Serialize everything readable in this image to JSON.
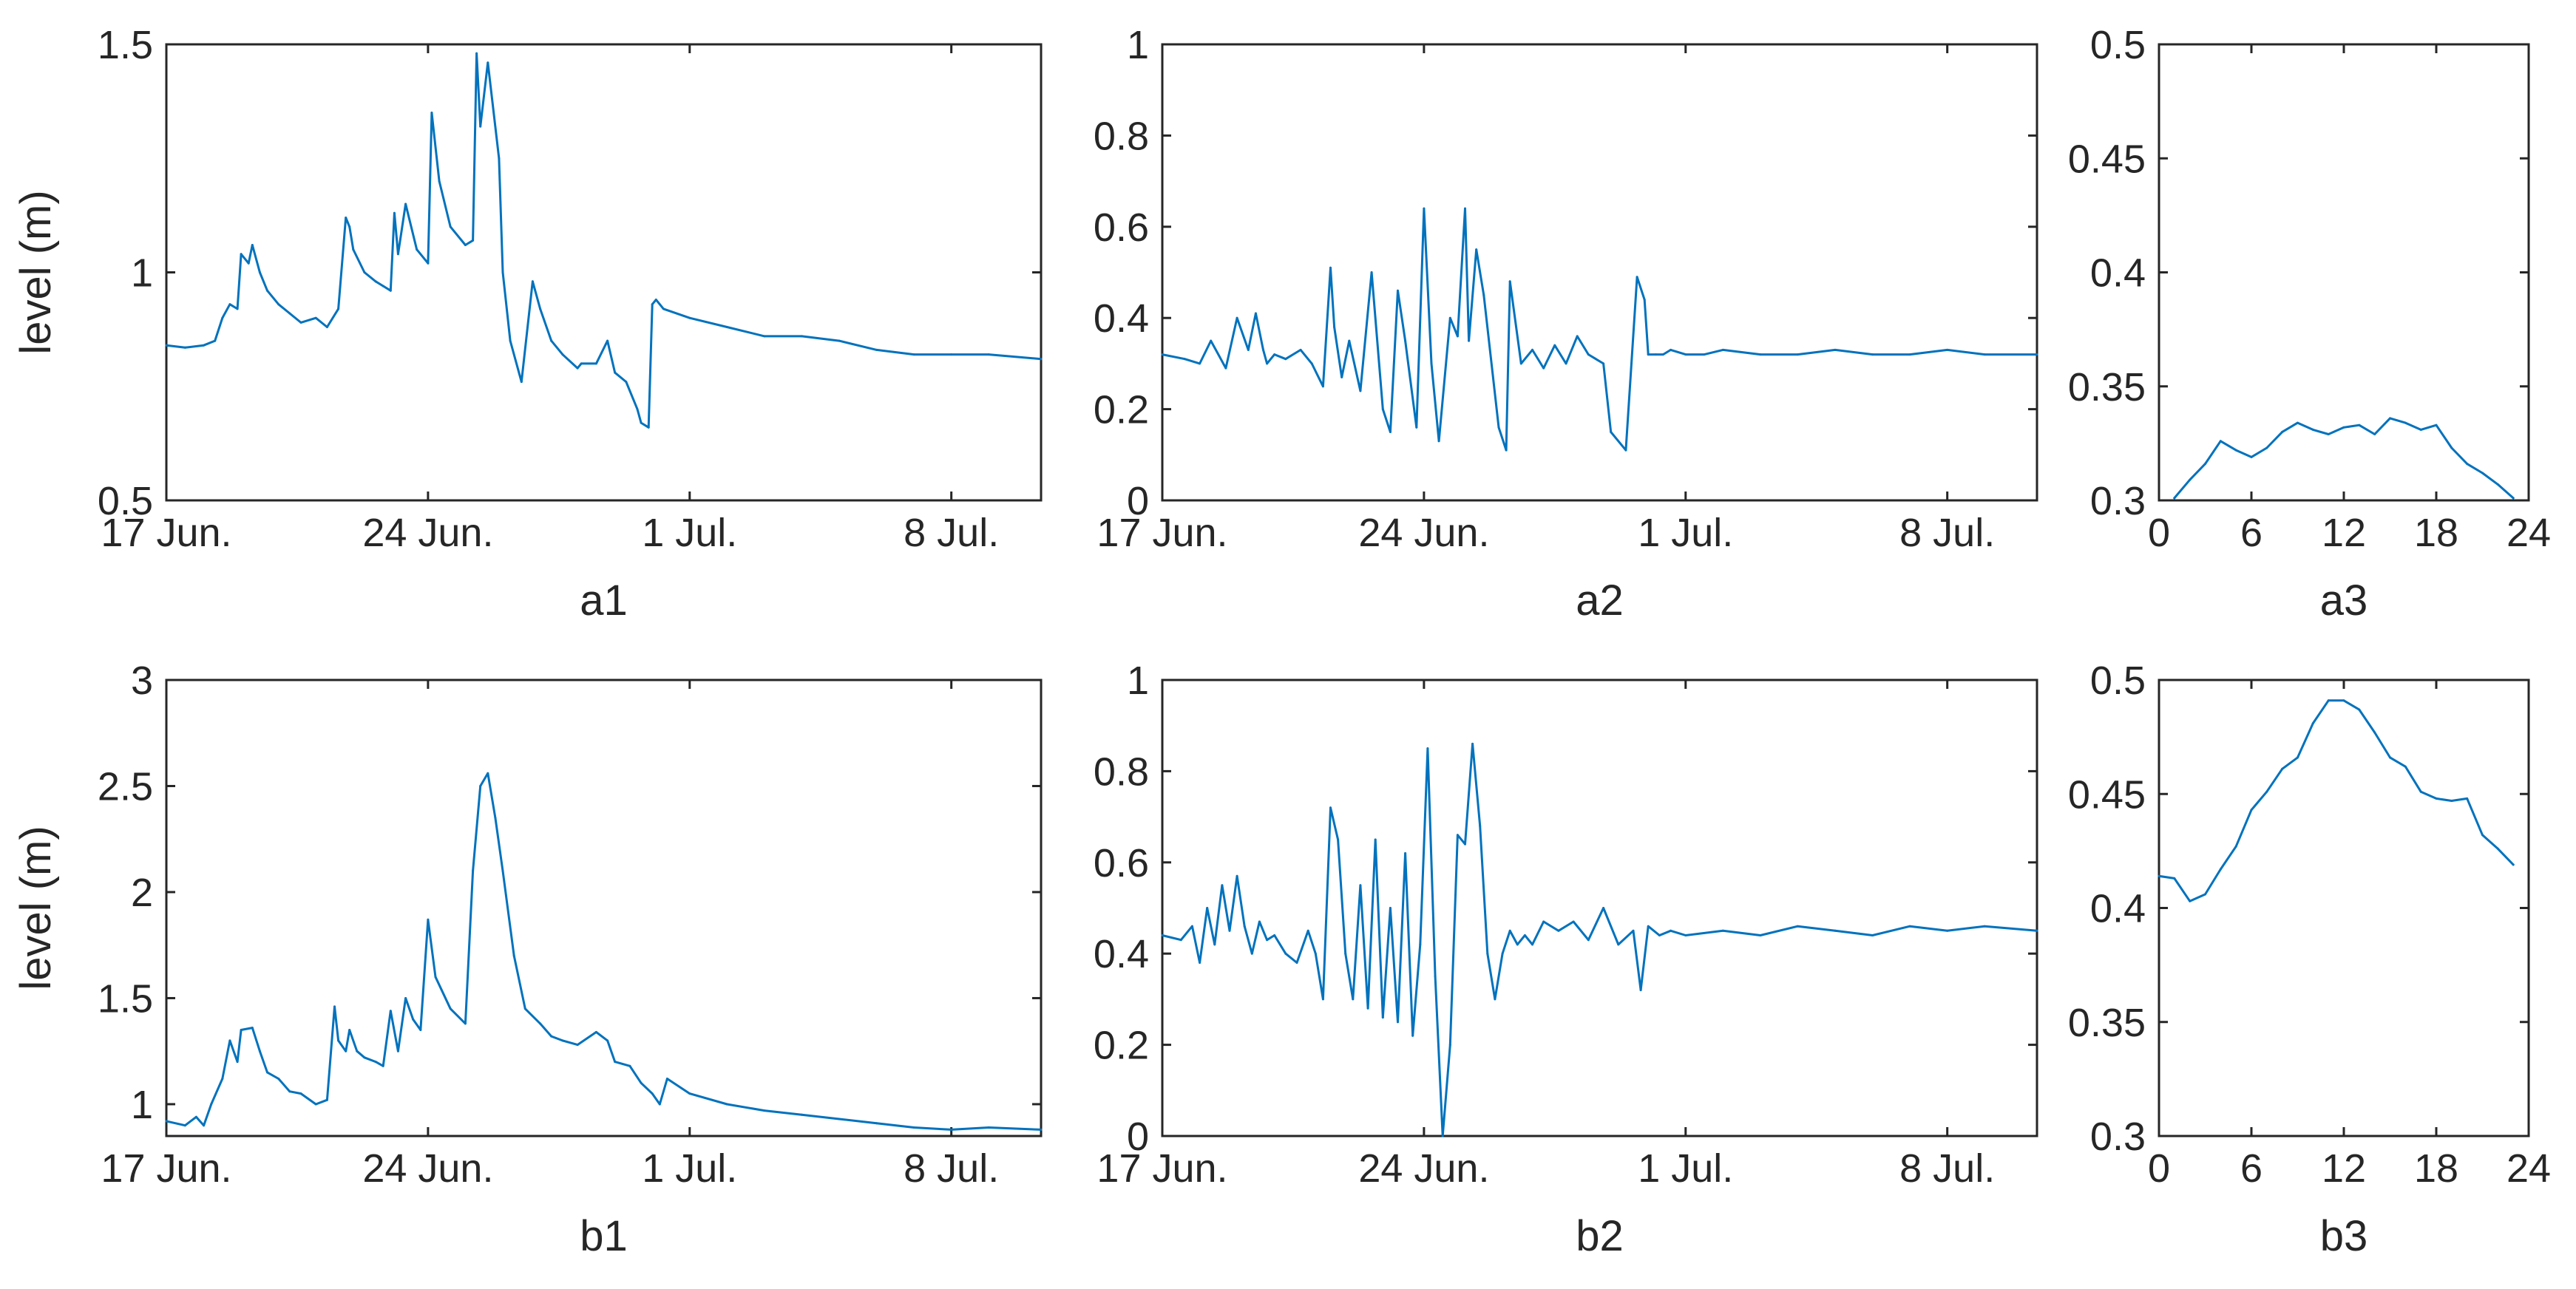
{
  "colors": {
    "series": "#0072BD",
    "axis": "#262626",
    "background": "#ffffff"
  },
  "chart_data": [
    {
      "id": "a1",
      "type": "line",
      "label": "a1",
      "ylabel": "level (m)",
      "xlim": [
        0,
        23.4
      ],
      "ylim": [
        0.5,
        1.5
      ],
      "xticks": [
        {
          "v": 0,
          "t": "17 Jun."
        },
        {
          "v": 7,
          "t": "24 Jun."
        },
        {
          "v": 14,
          "t": "1 Jul."
        },
        {
          "v": 21,
          "t": "8 Jul."
        }
      ],
      "yticks": [
        {
          "v": 0.5,
          "t": "0.5"
        },
        {
          "v": 1,
          "t": "1"
        },
        {
          "v": 1.5,
          "t": "1.5"
        }
      ],
      "x": [
        0,
        0.5,
        1,
        1.3,
        1.5,
        1.7,
        1.9,
        2,
        2.2,
        2.3,
        2.5,
        2.7,
        3,
        3.3,
        3.6,
        4,
        4.3,
        4.6,
        4.8,
        4.9,
        5,
        5.3,
        5.6,
        5.8,
        6,
        6.1,
        6.2,
        6.4,
        6.7,
        7,
        7.1,
        7.3,
        7.6,
        8,
        8.2,
        8.3,
        8.4,
        8.6,
        8.9,
        9,
        9.2,
        9.5,
        9.8,
        10,
        10.3,
        10.6,
        11,
        11.1,
        11.5,
        11.8,
        12,
        12.3,
        12.6,
        12.7,
        12.9,
        13,
        13.1,
        13.3,
        14,
        15,
        16,
        17,
        18,
        19,
        20,
        21,
        22,
        23.4
      ],
      "y": [
        0.84,
        0.835,
        0.84,
        0.85,
        0.9,
        0.93,
        0.92,
        1.04,
        1.02,
        1.06,
        1.0,
        0.96,
        0.93,
        0.91,
        0.89,
        0.9,
        0.88,
        0.92,
        1.12,
        1.1,
        1.05,
        1.0,
        0.98,
        0.97,
        0.96,
        1.13,
        1.04,
        1.15,
        1.05,
        1.02,
        1.35,
        1.2,
        1.1,
        1.06,
        1.07,
        1.48,
        1.32,
        1.46,
        1.25,
        1.0,
        0.85,
        0.76,
        0.98,
        0.92,
        0.85,
        0.82,
        0.79,
        0.8,
        0.8,
        0.85,
        0.78,
        0.76,
        0.7,
        0.67,
        0.66,
        0.93,
        0.94,
        0.92,
        0.9,
        0.88,
        0.86,
        0.86,
        0.85,
        0.83,
        0.82,
        0.82,
        0.82,
        0.81
      ]
    },
    {
      "id": "a2",
      "type": "line",
      "label": "a2",
      "ylabel": "",
      "xlim": [
        0,
        23.4
      ],
      "ylim": [
        0,
        1
      ],
      "xticks": [
        {
          "v": 0,
          "t": "17 Jun."
        },
        {
          "v": 7,
          "t": "24 Jun."
        },
        {
          "v": 14,
          "t": "1 Jul."
        },
        {
          "v": 21,
          "t": "8 Jul."
        }
      ],
      "yticks": [
        {
          "v": 0,
          "t": "0"
        },
        {
          "v": 0.2,
          "t": "0.2"
        },
        {
          "v": 0.4,
          "t": "0.4"
        },
        {
          "v": 0.6,
          "t": "0.6"
        },
        {
          "v": 0.8,
          "t": "0.8"
        },
        {
          "v": 1,
          "t": "1"
        }
      ],
      "x": [
        0,
        0.6,
        1,
        1.3,
        1.7,
        2,
        2.3,
        2.5,
        2.7,
        2.8,
        3,
        3.3,
        3.7,
        4,
        4.3,
        4.5,
        4.6,
        4.8,
        5,
        5.3,
        5.6,
        5.9,
        6.1,
        6.3,
        6.5,
        6.8,
        7,
        7.2,
        7.4,
        7.7,
        7.9,
        8.1,
        8.2,
        8.4,
        8.6,
        9,
        9.2,
        9.3,
        9.6,
        9.9,
        10.2,
        10.5,
        10.8,
        11.1,
        11.4,
        11.8,
        12,
        12.4,
        12.7,
        12.9,
        13,
        13.2,
        13.4,
        13.6,
        14,
        14.5,
        15,
        16,
        17,
        18,
        19,
        20,
        21,
        22,
        23.4
      ],
      "y": [
        0.32,
        0.31,
        0.3,
        0.35,
        0.29,
        0.4,
        0.33,
        0.41,
        0.33,
        0.3,
        0.32,
        0.31,
        0.33,
        0.3,
        0.25,
        0.51,
        0.38,
        0.27,
        0.35,
        0.24,
        0.5,
        0.2,
        0.15,
        0.46,
        0.35,
        0.16,
        0.64,
        0.3,
        0.13,
        0.4,
        0.36,
        0.64,
        0.35,
        0.55,
        0.45,
        0.16,
        0.11,
        0.48,
        0.3,
        0.33,
        0.29,
        0.34,
        0.3,
        0.36,
        0.32,
        0.3,
        0.15,
        0.11,
        0.49,
        0.44,
        0.32,
        0.32,
        0.32,
        0.33,
        0.32,
        0.32,
        0.33,
        0.32,
        0.32,
        0.33,
        0.32,
        0.32,
        0.33,
        0.32,
        0.32
      ]
    },
    {
      "id": "a3",
      "type": "line",
      "label": "a3",
      "ylabel": "",
      "xlim": [
        0,
        24
      ],
      "ylim": [
        0.3,
        0.5
      ],
      "xticks": [
        {
          "v": 0,
          "t": "0"
        },
        {
          "v": 6,
          "t": "6"
        },
        {
          "v": 12,
          "t": "12"
        },
        {
          "v": 18,
          "t": "18"
        },
        {
          "v": 24,
          "t": "24"
        }
      ],
      "yticks": [
        {
          "v": 0.3,
          "t": "0.3"
        },
        {
          "v": 0.35,
          "t": "0.35"
        },
        {
          "v": 0.4,
          "t": "0.4"
        },
        {
          "v": 0.45,
          "t": "0.45"
        },
        {
          "v": 0.5,
          "t": "0.5"
        }
      ],
      "x": [
        1,
        2,
        3,
        4,
        5,
        6,
        7,
        8,
        9,
        10,
        11,
        12,
        13,
        14,
        15,
        16,
        17,
        18,
        19,
        20,
        21,
        22,
        23
      ],
      "y": [
        0.301,
        0.309,
        0.316,
        0.326,
        0.322,
        0.319,
        0.323,
        0.33,
        0.334,
        0.331,
        0.329,
        0.332,
        0.333,
        0.329,
        0.336,
        0.334,
        0.331,
        0.333,
        0.323,
        0.316,
        0.312,
        0.307,
        0.301
      ]
    },
    {
      "id": "b1",
      "type": "line",
      "label": "b1",
      "ylabel": "level (m)",
      "xlim": [
        0,
        23.4
      ],
      "ylim": [
        0.85,
        3
      ],
      "xticks": [
        {
          "v": 0,
          "t": "17 Jun."
        },
        {
          "v": 7,
          "t": "24 Jun."
        },
        {
          "v": 14,
          "t": "1 Jul."
        },
        {
          "v": 21,
          "t": "8 Jul."
        }
      ],
      "yticks": [
        {
          "v": 1,
          "t": "1"
        },
        {
          "v": 1.5,
          "t": "1.5"
        },
        {
          "v": 2,
          "t": "2"
        },
        {
          "v": 2.5,
          "t": "2.5"
        },
        {
          "v": 3,
          "t": "3"
        }
      ],
      "x": [
        0,
        0.5,
        0.8,
        1,
        1.2,
        1.5,
        1.7,
        1.9,
        2,
        2.3,
        2.5,
        2.7,
        3,
        3.3,
        3.6,
        4,
        4.3,
        4.5,
        4.6,
        4.8,
        4.9,
        5.1,
        5.3,
        5.6,
        5.8,
        6,
        6.2,
        6.4,
        6.6,
        6.8,
        7,
        7.2,
        7.6,
        8,
        8.2,
        8.4,
        8.6,
        8.8,
        9,
        9.3,
        9.6,
        10,
        10.3,
        10.6,
        11,
        11.5,
        11.8,
        12,
        12.4,
        12.7,
        13,
        13.2,
        13.4,
        14,
        15,
        16,
        17,
        18,
        19,
        20,
        21,
        22,
        23.4
      ],
      "y": [
        0.92,
        0.9,
        0.94,
        0.9,
        1.0,
        1.12,
        1.3,
        1.2,
        1.35,
        1.36,
        1.25,
        1.15,
        1.12,
        1.06,
        1.05,
        1.0,
        1.02,
        1.46,
        1.3,
        1.25,
        1.35,
        1.25,
        1.22,
        1.2,
        1.18,
        1.44,
        1.25,
        1.5,
        1.4,
        1.35,
        1.87,
        1.6,
        1.45,
        1.38,
        2.1,
        2.5,
        2.56,
        2.35,
        2.1,
        1.7,
        1.45,
        1.38,
        1.32,
        1.3,
        1.28,
        1.34,
        1.3,
        1.2,
        1.18,
        1.1,
        1.05,
        1.0,
        1.12,
        1.05,
        1.0,
        0.97,
        0.95,
        0.93,
        0.91,
        0.89,
        0.88,
        0.89,
        0.88
      ]
    },
    {
      "id": "b2",
      "type": "line",
      "label": "b2",
      "ylabel": "",
      "xlim": [
        0,
        23.4
      ],
      "ylim": [
        0,
        1
      ],
      "xticks": [
        {
          "v": 0,
          "t": "17 Jun."
        },
        {
          "v": 7,
          "t": "24 Jun."
        },
        {
          "v": 14,
          "t": "1 Jul."
        },
        {
          "v": 21,
          "t": "8 Jul."
        }
      ],
      "yticks": [
        {
          "v": 0,
          "t": "0"
        },
        {
          "v": 0.2,
          "t": "0.2"
        },
        {
          "v": 0.4,
          "t": "0.4"
        },
        {
          "v": 0.6,
          "t": "0.6"
        },
        {
          "v": 0.8,
          "t": "0.8"
        },
        {
          "v": 1,
          "t": "1"
        }
      ],
      "x": [
        0,
        0.5,
        0.8,
        1,
        1.2,
        1.4,
        1.6,
        1.8,
        2,
        2.2,
        2.4,
        2.6,
        2.8,
        3,
        3.3,
        3.6,
        3.9,
        4.1,
        4.3,
        4.5,
        4.7,
        4.9,
        5.1,
        5.3,
        5.5,
        5.7,
        5.9,
        6.1,
        6.3,
        6.5,
        6.7,
        6.9,
        7.1,
        7.3,
        7.5,
        7.7,
        7.9,
        8.1,
        8.3,
        8.5,
        8.7,
        8.9,
        9.1,
        9.3,
        9.5,
        9.7,
        9.9,
        10.2,
        10.6,
        11,
        11.4,
        11.8,
        12.2,
        12.6,
        12.8,
        13,
        13.3,
        13.6,
        14,
        15,
        16,
        17,
        18,
        19,
        20,
        21,
        22,
        23.4
      ],
      "y": [
        0.44,
        0.43,
        0.46,
        0.38,
        0.5,
        0.42,
        0.55,
        0.45,
        0.57,
        0.46,
        0.4,
        0.47,
        0.43,
        0.44,
        0.4,
        0.38,
        0.45,
        0.4,
        0.3,
        0.72,
        0.65,
        0.4,
        0.3,
        0.55,
        0.28,
        0.65,
        0.26,
        0.5,
        0.25,
        0.62,
        0.22,
        0.42,
        0.85,
        0.35,
        0.0,
        0.2,
        0.66,
        0.64,
        0.86,
        0.68,
        0.4,
        0.3,
        0.4,
        0.45,
        0.42,
        0.44,
        0.42,
        0.47,
        0.45,
        0.47,
        0.43,
        0.5,
        0.42,
        0.45,
        0.32,
        0.46,
        0.44,
        0.45,
        0.44,
        0.45,
        0.44,
        0.46,
        0.45,
        0.44,
        0.46,
        0.45,
        0.46,
        0.45
      ]
    },
    {
      "id": "b3",
      "type": "line",
      "label": "b3",
      "ylabel": "",
      "xlim": [
        0,
        24
      ],
      "ylim": [
        0.3,
        0.5
      ],
      "xticks": [
        {
          "v": 0,
          "t": "0"
        },
        {
          "v": 6,
          "t": "6"
        },
        {
          "v": 12,
          "t": "12"
        },
        {
          "v": 18,
          "t": "18"
        },
        {
          "v": 24,
          "t": "24"
        }
      ],
      "yticks": [
        {
          "v": 0.3,
          "t": "0.3"
        },
        {
          "v": 0.35,
          "t": "0.35"
        },
        {
          "v": 0.4,
          "t": "0.4"
        },
        {
          "v": 0.45,
          "t": "0.45"
        },
        {
          "v": 0.5,
          "t": "0.5"
        }
      ],
      "x": [
        0,
        1,
        2,
        3,
        4,
        5,
        6,
        7,
        8,
        9,
        10,
        11,
        12,
        13,
        14,
        15,
        16,
        17,
        18,
        19,
        20,
        21,
        22,
        23
      ],
      "y": [
        0.414,
        0.413,
        0.403,
        0.406,
        0.417,
        0.427,
        0.443,
        0.451,
        0.461,
        0.466,
        0.481,
        0.491,
        0.491,
        0.487,
        0.477,
        0.466,
        0.462,
        0.451,
        0.448,
        0.447,
        0.448,
        0.432,
        0.426,
        0.419
      ]
    }
  ]
}
